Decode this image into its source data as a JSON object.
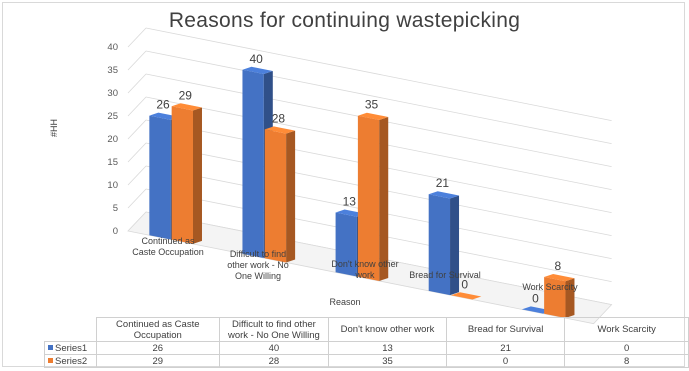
{
  "chart_data": {
    "type": "bar",
    "title": "Reasons for continuing wastepicking",
    "xlabel": "Reason",
    "ylabel": "#HH",
    "ylim": [
      0,
      40
    ],
    "yticks": [
      0,
      5,
      10,
      15,
      20,
      25,
      30,
      35,
      40
    ],
    "categories": [
      "Continued as Caste Occupation",
      "Difficult to find other work - No One Willing",
      "Don't know other work",
      "Bread for Survival",
      "Work Scarcity"
    ],
    "series": [
      {
        "name": "Series1",
        "values": [
          26,
          40,
          13,
          21,
          0
        ],
        "color": "#4472C4"
      },
      {
        "name": "Series2",
        "values": [
          29,
          28,
          35,
          0,
          8
        ],
        "color": "#ED7D31"
      }
    ],
    "data_labels": true,
    "legend": "data table below chart",
    "grid": true,
    "style": "3d-clustered-column"
  }
}
